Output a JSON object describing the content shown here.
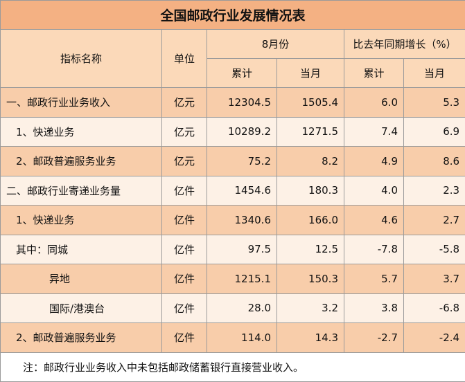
{
  "title": "全国邮政行业发展情况表",
  "header": {
    "name": "指标名称",
    "unit": "单位",
    "group1": "8月份",
    "group2": "比去年同期增长（%）",
    "sub": [
      "累计",
      "当月",
      "累计",
      "当月"
    ]
  },
  "table": {
    "rows": [
      [
        "一、邮政行业业务收入",
        "亿元",
        "12304.5",
        "1505.4",
        "6.0",
        "5.3"
      ],
      [
        "1、快递业务",
        "亿元",
        "10289.2",
        "1271.5",
        "7.4",
        "6.9"
      ],
      [
        "2、邮政普遍服务业务",
        "亿元",
        "75.2",
        "8.2",
        "4.9",
        "8.6"
      ],
      [
        "二、邮政行业寄递业务量",
        "亿件",
        "1454.6",
        "180.3",
        "4.0",
        "2.3"
      ],
      [
        "1、快递业务",
        "亿件",
        "1340.6",
        "166.0",
        "4.6",
        "2.7"
      ],
      [
        "其中：同城",
        "亿件",
        "97.5",
        "12.5",
        "-7.8",
        "-5.8"
      ],
      [
        "异地",
        "亿件",
        "1215.1",
        "150.3",
        "5.7",
        "3.7"
      ],
      [
        "国际/港澳台",
        "亿件",
        "28.0",
        "3.2",
        "3.8",
        "-6.8"
      ],
      [
        "2、邮政普遍服务业务",
        "亿件",
        "114.0",
        "14.3",
        "-2.7",
        "-2.4"
      ]
    ]
  },
  "note": "注：邮政行业业务收入中未包括邮政储蓄银行直接营业收入。"
}
